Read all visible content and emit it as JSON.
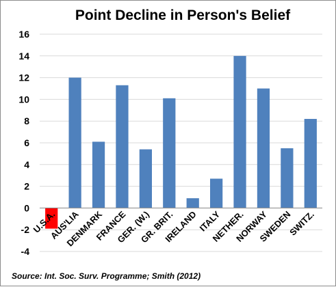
{
  "chart_data": {
    "type": "bar",
    "title": "Point Decline in Person's Belief",
    "categories": [
      "U.S.A.",
      "AUS'LIA",
      "DENMARK",
      "FRANCE",
      "GER. (W.)",
      "GR. BRIT.",
      "IRELAND",
      "ITALY",
      "NETHER.",
      "NORWAY",
      "SWEDEN",
      "SWITZ."
    ],
    "values": [
      -1.9,
      12.0,
      6.1,
      11.3,
      5.4,
      10.1,
      0.9,
      2.7,
      14.0,
      11.0,
      5.5,
      8.2
    ],
    "colors": [
      "#ff0000",
      "#4f81bd",
      "#4f81bd",
      "#4f81bd",
      "#4f81bd",
      "#4f81bd",
      "#4f81bd",
      "#4f81bd",
      "#4f81bd",
      "#4f81bd",
      "#4f81bd",
      "#4f81bd"
    ],
    "ylim": [
      -4,
      16
    ],
    "yticks": [
      "-4",
      "-2",
      "0",
      "2",
      "4",
      "6",
      "8",
      "10",
      "12",
      "14",
      "16"
    ],
    "grid": true,
    "legend": "none",
    "source": "Source: Int. Soc. Surv. Programme; Smith (2012)",
    "gridline_color": "#d9d9d9"
  }
}
